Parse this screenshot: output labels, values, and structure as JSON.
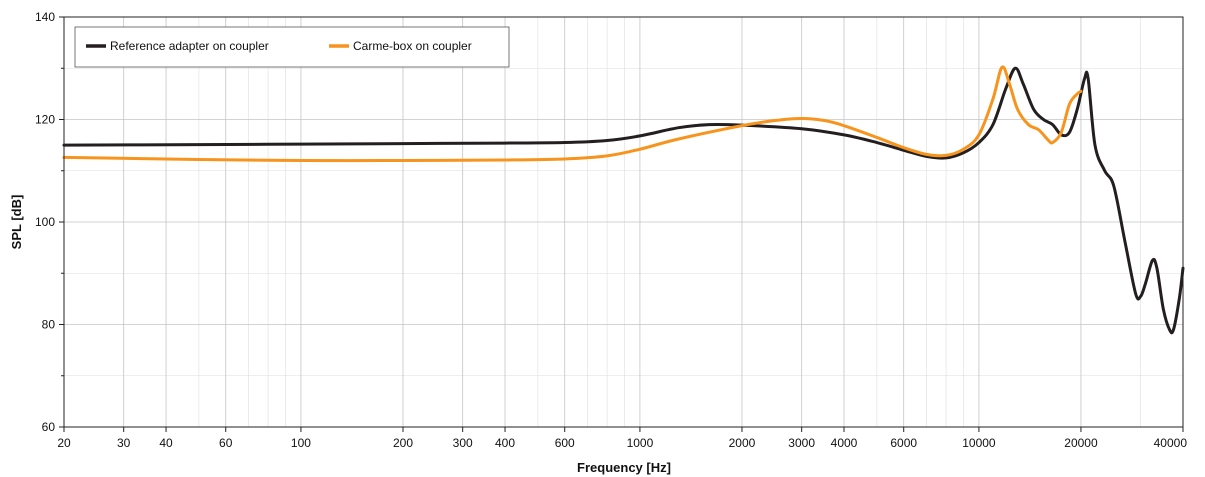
{
  "chart_data": {
    "type": "line",
    "xlabel": "Frequency [Hz]",
    "ylabel": "SPL [dB]",
    "x_scale": "log",
    "xlim": [
      20,
      40000
    ],
    "ylim": [
      60,
      140
    ],
    "grid": true,
    "legend_position": "top-left",
    "x_ticks": [
      20,
      30,
      40,
      60,
      100,
      200,
      300,
      400,
      600,
      1000,
      2000,
      3000,
      4000,
      6000,
      10000,
      20000,
      40000
    ],
    "x_tick_labels": [
      "20",
      "30",
      "40",
      "60",
      "100",
      "200",
      "300",
      "400",
      "600",
      "1000",
      "2000",
      "3000",
      "4000",
      "6000",
      "10000",
      "20000",
      "40000"
    ],
    "y_ticks": [
      60,
      80,
      100,
      120,
      140
    ],
    "y_tick_labels": [
      "60",
      "80",
      "100",
      "120",
      "140"
    ],
    "series": [
      {
        "name": "Reference adapter on coupler",
        "color": "#231f20",
        "points": [
          [
            20,
            115.0
          ],
          [
            50,
            115.1
          ],
          [
            100,
            115.2
          ],
          [
            200,
            115.3
          ],
          [
            400,
            115.4
          ],
          [
            600,
            115.5
          ],
          [
            800,
            115.9
          ],
          [
            1000,
            116.8
          ],
          [
            1300,
            118.4
          ],
          [
            1600,
            119.0
          ],
          [
            2000,
            118.9
          ],
          [
            3000,
            118.2
          ],
          [
            4000,
            117.0
          ],
          [
            5000,
            115.5
          ],
          [
            6000,
            114.0
          ],
          [
            7000,
            112.8
          ],
          [
            8000,
            112.5
          ],
          [
            9000,
            113.5
          ],
          [
            10000,
            115.5
          ],
          [
            11000,
            119.0
          ],
          [
            12000,
            126.0
          ],
          [
            12800,
            130.0
          ],
          [
            13500,
            127.0
          ],
          [
            14500,
            122.0
          ],
          [
            15500,
            120.0
          ],
          [
            16500,
            119.0
          ],
          [
            17500,
            117.0
          ],
          [
            18500,
            117.5
          ],
          [
            19500,
            122.0
          ],
          [
            20500,
            128.0
          ],
          [
            21000,
            128.0
          ],
          [
            22000,
            115.0
          ],
          [
            23500,
            110.0
          ],
          [
            25000,
            107.0
          ],
          [
            27000,
            96.0
          ],
          [
            29000,
            86.0
          ],
          [
            30000,
            85.5
          ],
          [
            31000,
            88.0
          ],
          [
            32500,
            92.5
          ],
          [
            33500,
            91.0
          ],
          [
            35000,
            83.0
          ],
          [
            36500,
            79.0
          ],
          [
            37500,
            79.0
          ],
          [
            39000,
            85.0
          ],
          [
            40000,
            91.0
          ]
        ]
      },
      {
        "name": "Carme-box on coupler",
        "color": "#f7941d",
        "points": [
          [
            20,
            112.6
          ],
          [
            50,
            112.2
          ],
          [
            100,
            112.0
          ],
          [
            200,
            112.0
          ],
          [
            400,
            112.1
          ],
          [
            600,
            112.3
          ],
          [
            800,
            112.9
          ],
          [
            1000,
            114.2
          ],
          [
            1300,
            116.2
          ],
          [
            2000,
            118.8
          ],
          [
            2500,
            119.8
          ],
          [
            3000,
            120.2
          ],
          [
            3500,
            119.8
          ],
          [
            4000,
            118.8
          ],
          [
            5000,
            116.5
          ],
          [
            6000,
            114.5
          ],
          [
            7000,
            113.2
          ],
          [
            8000,
            113.0
          ],
          [
            9000,
            114.2
          ],
          [
            10000,
            117.0
          ],
          [
            11000,
            124.0
          ],
          [
            11700,
            130.2
          ],
          [
            12300,
            127.0
          ],
          [
            13000,
            122.0
          ],
          [
            14000,
            119.0
          ],
          [
            15000,
            118.0
          ],
          [
            16000,
            116.0
          ],
          [
            16500,
            115.5
          ],
          [
            17500,
            117.5
          ],
          [
            18500,
            123.0
          ],
          [
            19500,
            125.0
          ],
          [
            20000,
            125.5
          ]
        ]
      }
    ]
  }
}
